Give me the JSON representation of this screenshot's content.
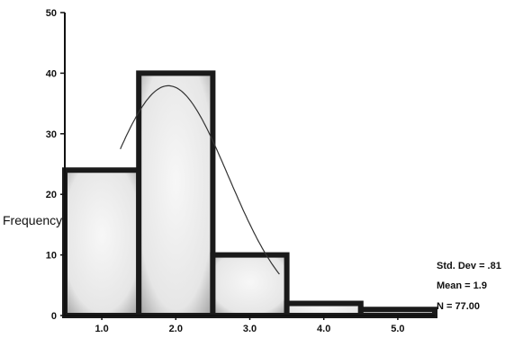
{
  "chart_data": {
    "type": "bar",
    "subtype": "histogram",
    "title": "",
    "xlabel": "",
    "ylabel": "Frequency",
    "bins": [
      {
        "lo": 0.5,
        "hi": 1.5,
        "count": 24
      },
      {
        "lo": 1.5,
        "hi": 2.5,
        "count": 40
      },
      {
        "lo": 2.5,
        "hi": 3.5,
        "count": 10
      },
      {
        "lo": 3.5,
        "hi": 4.5,
        "count": 2
      },
      {
        "lo": 4.5,
        "hi": 5.5,
        "count": 1
      }
    ],
    "xlim": [
      0.5,
      5.5
    ],
    "ylim": [
      0,
      50
    ],
    "x_ticks": [
      1.0,
      2.0,
      3.0,
      4.0,
      5.0
    ],
    "x_tick_labels": [
      "1.0",
      "2.0",
      "3.0",
      "4.0",
      "5.0"
    ],
    "y_ticks": [
      0,
      10,
      20,
      30,
      40,
      50
    ],
    "y_tick_labels": [
      "0",
      "10",
      "20",
      "30",
      "40",
      "50"
    ],
    "normal_curve": {
      "mean": 1.9,
      "std_dev": 0.81,
      "n": 77
    },
    "stats_text": [
      "Std. Dev = .81",
      "Mean = 1.9",
      "N = 77.00"
    ],
    "grid": false,
    "colors": {
      "bar_fill": "#eeeeee",
      "bar_edge": "#1a1a1a",
      "curve": "#333333",
      "axis": "#111111"
    }
  }
}
